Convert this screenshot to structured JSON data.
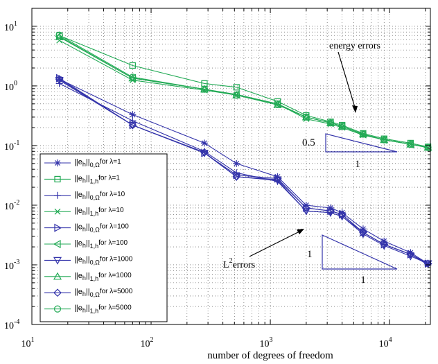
{
  "chart_data": {
    "type": "line",
    "xscale": "log",
    "yscale": "log",
    "xlim": [
      10,
      22000
    ],
    "ylim": [
      0.0001,
      20
    ],
    "grid": true,
    "legend_position": "lower-left",
    "xlabel": "number of degrees of freedom",
    "ylabel": "",
    "x_ticks": [
      {
        "base": "10",
        "exp": "1",
        "value": 10
      },
      {
        "base": "10",
        "exp": "2",
        "value": 100
      },
      {
        "base": "10",
        "exp": "3",
        "value": 1000
      },
      {
        "base": "10",
        "exp": "4",
        "value": 10000
      }
    ],
    "y_ticks": [
      {
        "base": "10",
        "exp": "1",
        "value": 10
      },
      {
        "base": "10",
        "exp": "0",
        "value": 1
      },
      {
        "base": "10",
        "exp": "-1",
        "value": 0.1
      },
      {
        "base": "10",
        "exp": "-2",
        "value": 0.01
      },
      {
        "base": "10",
        "exp": "-3",
        "value": 0.001
      },
      {
        "base": "10",
        "exp": "-4",
        "value": 0.0001
      }
    ],
    "annotations": [
      {
        "text": "energy errors"
      },
      {
        "text": "L",
        "sup": "2",
        "rest": "errors"
      }
    ],
    "slope_triangles": [
      {
        "rise_label": "0.5",
        "run_label": "1"
      },
      {
        "rise_label": "1",
        "run_label": "1"
      }
    ],
    "series": [
      {
        "name": "||e_h||_{0,Ω} for λ=1",
        "color": "#3333aa",
        "marker": "star",
        "x": [
          17,
          70,
          280,
          520,
          1150,
          2000,
          3200,
          4000,
          6000,
          9000,
          15000,
          21000
        ],
        "y": [
          1.3,
          0.33,
          0.11,
          0.05,
          0.03,
          0.01,
          0.009,
          0.0075,
          0.004,
          0.0025,
          0.0016,
          0.00105
        ]
      },
      {
        "name": "||e_h||_{1,h} for λ=1",
        "color": "#22aa55",
        "marker": "square",
        "x": [
          17,
          70,
          280,
          520,
          1150,
          2000,
          3200,
          4000,
          6000,
          9000,
          15000,
          21000
        ],
        "y": [
          7,
          2.2,
          1.1,
          0.95,
          0.55,
          0.32,
          0.25,
          0.22,
          0.16,
          0.13,
          0.11,
          0.095
        ]
      },
      {
        "name": "||e_h||_{0,Ω} for λ=10",
        "color": "#3333aa",
        "marker": "plus",
        "x": [
          17,
          70,
          280,
          520,
          1150,
          2000,
          3200,
          4000,
          6000,
          9000,
          15000,
          21000
        ],
        "y": [
          1.1,
          0.26,
          0.08,
          0.035,
          0.025,
          0.008,
          0.0075,
          0.0065,
          0.0035,
          0.0022,
          0.0015,
          0.001
        ]
      },
      {
        "name": "||e_h||_{1,h} for λ=10",
        "color": "#22aa55",
        "marker": "x",
        "x": [
          17,
          70,
          280,
          520,
          1150,
          2000,
          3200,
          4000,
          6000,
          9000,
          15000,
          21000
        ],
        "y": [
          5.8,
          1.25,
          0.85,
          0.7,
          0.5,
          0.28,
          0.23,
          0.2,
          0.15,
          0.125,
          0.105,
          0.092
        ]
      },
      {
        "name": "||e_h||_{0,Ω} for λ=100",
        "color": "#3333aa",
        "marker": "tri-right",
        "x": [
          17,
          70,
          280,
          520,
          1150,
          2000,
          3200,
          4000,
          6000,
          9000,
          15000,
          21000
        ],
        "y": [
          1.35,
          0.22,
          0.075,
          0.032,
          0.028,
          0.009,
          0.008,
          0.007,
          0.0035,
          0.0022,
          0.0015,
          0.00105
        ]
      },
      {
        "name": "||e_h||_{1,h} for λ=100",
        "color": "#22aa55",
        "marker": "tri-left",
        "x": [
          17,
          70,
          280,
          520,
          1150,
          2000,
          3200,
          4000,
          6000,
          9000,
          15000,
          21000
        ],
        "y": [
          6.8,
          1.35,
          0.88,
          0.72,
          0.5,
          0.3,
          0.24,
          0.21,
          0.155,
          0.125,
          0.105,
          0.093
        ]
      },
      {
        "name": "||e_h||_{0,Ω} for λ=1000",
        "color": "#3333aa",
        "marker": "tri-down",
        "x": [
          17,
          70,
          280,
          520,
          1150,
          2000,
          3200,
          4000,
          6000,
          9000,
          15000,
          21000
        ],
        "y": [
          1.25,
          0.22,
          0.075,
          0.03,
          0.026,
          0.008,
          0.0075,
          0.0065,
          0.0033,
          0.0021,
          0.0014,
          0.00105
        ]
      },
      {
        "name": "||e_h||_{1,h} for λ=1000",
        "color": "#22aa55",
        "marker": "tri-up",
        "x": [
          17,
          70,
          280,
          520,
          1150,
          2000,
          3200,
          4000,
          6000,
          9000,
          15000,
          21000
        ],
        "y": [
          6.6,
          1.35,
          0.88,
          0.7,
          0.48,
          0.3,
          0.24,
          0.21,
          0.155,
          0.125,
          0.105,
          0.093
        ]
      },
      {
        "name": "||e_h||_{0,Ω} for λ=5000",
        "color": "#3333aa",
        "marker": "diamond",
        "x": [
          17,
          70,
          280,
          520,
          1150,
          2000,
          3200,
          4000,
          6000,
          9000,
          15000,
          21000
        ],
        "y": [
          1.3,
          0.22,
          0.077,
          0.03,
          0.027,
          0.009,
          0.008,
          0.007,
          0.0035,
          0.0022,
          0.0015,
          0.00105
        ]
      },
      {
        "name": "||e_h||_{1,h} for λ=5000",
        "color": "#22aa55",
        "marker": "circle",
        "x": [
          17,
          70,
          280,
          520,
          1150,
          2000,
          3200,
          4000,
          6000,
          9000,
          15000,
          21000
        ],
        "y": [
          7.1,
          1.4,
          0.88,
          0.7,
          0.5,
          0.3,
          0.24,
          0.21,
          0.155,
          0.125,
          0.105,
          0.093
        ]
      }
    ],
    "legend": [
      {
        "norm": "||e",
        "sub1": "h",
        "bars": "||",
        "sub2": "0,Ω",
        "suffix": "for λ=1"
      },
      {
        "norm": "||e",
        "sub1": "h",
        "bars": "||",
        "sub2": "1,h",
        "suffix": "for λ=1"
      },
      {
        "norm": "||e",
        "sub1": "h",
        "bars": "||",
        "sub2": "0,Ω",
        "suffix": "for λ=10"
      },
      {
        "norm": "||e",
        "sub1": "h",
        "bars": "||",
        "sub2": "1,h",
        "suffix": "for λ=10"
      },
      {
        "norm": "||e",
        "sub1": "h",
        "bars": "||",
        "sub2": "0,Ω",
        "suffix": "for λ=100"
      },
      {
        "norm": "||e",
        "sub1": "h",
        "bars": "||",
        "sub2": "1,h",
        "suffix": "for λ=100"
      },
      {
        "norm": "||e",
        "sub1": "h",
        "bars": "||",
        "sub2": "0,Ω",
        "suffix": "for λ=1000"
      },
      {
        "norm": "||e",
        "sub1": "h",
        "bars": "||",
        "sub2": "1,h",
        "suffix": "for λ=1000"
      },
      {
        "norm": "||e",
        "sub1": "h",
        "bars": "||",
        "sub2": "0,Ω",
        "suffix": "for λ=5000"
      },
      {
        "norm": "||e",
        "sub1": "h",
        "bars": "||",
        "sub2": "1,h",
        "suffix": "for λ=5000"
      }
    ]
  }
}
